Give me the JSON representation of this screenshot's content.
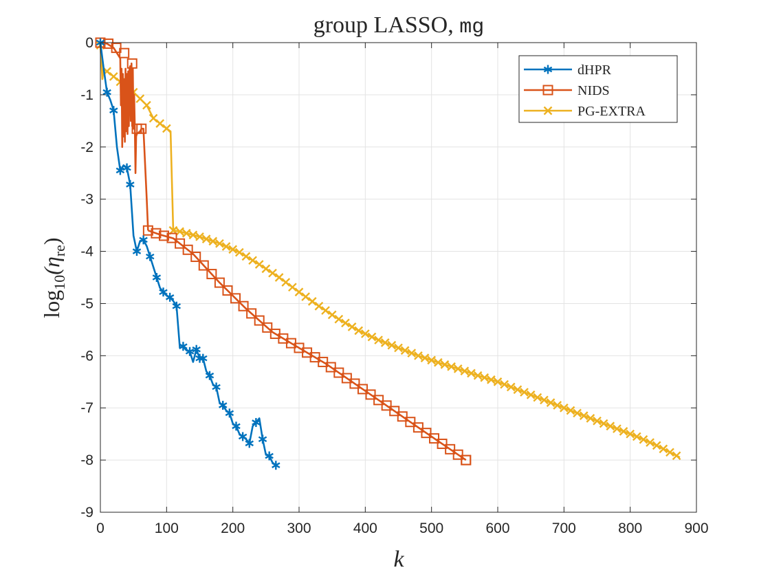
{
  "chart_data": {
    "type": "line",
    "title": "group LASSO, ",
    "title_code": "mg",
    "xlabel": "k",
    "ylabel_prefix": "log",
    "ylabel_sub1": "10",
    "ylabel_eta": "(η",
    "ylabel_sub2": "re",
    "ylabel_suffix": ")",
    "xlim": [
      0,
      900
    ],
    "ylim": [
      -9,
      0
    ],
    "xticks": [
      0,
      100,
      200,
      300,
      400,
      500,
      600,
      700,
      800,
      900
    ],
    "yticks": [
      0,
      -1,
      -2,
      -3,
      -4,
      -5,
      -6,
      -7,
      -8,
      -9
    ],
    "xtick_labels": [
      "0",
      "100",
      "200",
      "300",
      "400",
      "500",
      "600",
      "700",
      "800",
      "900"
    ],
    "ytick_labels": [
      "0",
      "-1",
      "-2",
      "-3",
      "-4",
      "-5",
      "-6",
      "-7",
      "-8",
      "-9"
    ],
    "grid": true,
    "legend_position": "top-right",
    "series": [
      {
        "name": "dHPR",
        "color": "#0072BD",
        "marker": "asterisk",
        "x": [
          0,
          5,
          10,
          15,
          20,
          25,
          30,
          35,
          40,
          45,
          50,
          55,
          60,
          65,
          70,
          75,
          80,
          85,
          90,
          95,
          100,
          105,
          110,
          115,
          120,
          125,
          130,
          135,
          140,
          145,
          150,
          155,
          160,
          165,
          170,
          175,
          180,
          185,
          190,
          195,
          200,
          205,
          210,
          215,
          220,
          225,
          230,
          235,
          240,
          245,
          250,
          255,
          260,
          265
        ],
        "y": [
          0,
          -0.5,
          -0.95,
          -1.1,
          -1.3,
          -2.0,
          -2.45,
          -2.35,
          -2.4,
          -2.72,
          -3.7,
          -4.0,
          -3.8,
          -3.78,
          -3.9,
          -4.1,
          -4.3,
          -4.5,
          -4.7,
          -4.78,
          -4.85,
          -4.88,
          -4.95,
          -5.05,
          -5.85,
          -5.82,
          -5.9,
          -5.92,
          -6.12,
          -5.88,
          -6.05,
          -6.05,
          -6.3,
          -6.38,
          -6.55,
          -6.6,
          -6.9,
          -6.95,
          -7.05,
          -7.1,
          -7.3,
          -7.35,
          -7.5,
          -7.55,
          -7.6,
          -7.68,
          -7.35,
          -7.28,
          -7.2,
          -7.6,
          -7.9,
          -7.92,
          -8.05,
          -8.1
        ],
        "marker_indices": [
          0,
          2,
          4,
          6,
          8,
          9,
          11,
          13,
          15,
          17,
          19,
          21,
          23,
          25,
          27,
          29,
          30,
          31,
          33,
          35,
          37,
          39,
          41,
          43,
          45,
          47,
          49,
          51,
          53
        ]
      },
      {
        "name": "NIDS",
        "color": "#D95319",
        "marker": "square",
        "x": [
          0,
          10,
          20,
          25,
          30,
          31,
          32,
          33,
          34,
          35,
          36,
          37,
          38,
          39,
          40,
          41,
          42,
          43,
          44,
          45,
          46,
          47,
          48,
          49,
          50,
          51,
          52,
          53,
          54,
          55,
          60,
          62,
          65,
          70,
          72
        ],
        "y": [
          0,
          -0.02,
          -0.1,
          -0.2,
          -0.3,
          -1.2,
          -0.5,
          -2.0,
          -0.6,
          -1.8,
          -0.7,
          -1.9,
          -0.5,
          -1.7,
          -0.6,
          -1.75,
          -0.55,
          -1.6,
          -0.5,
          -0.45,
          -1.5,
          -0.4,
          -1.6,
          -0.5,
          -1.65,
          -1.0,
          -1.6,
          -2.5,
          -1.8,
          -1.75,
          -1.7,
          -1.65,
          -1.65,
          -3.0,
          -3.6
        ],
        "tail_x_start": 72,
        "tail_x_end": 552,
        "tail_step": 12,
        "tail_y_start": -3.6,
        "tail_y_end": -8.0,
        "tail_curve": [
          [
            72,
            -3.6
          ],
          [
            90,
            -3.68
          ],
          [
            110,
            -3.75
          ],
          [
            140,
            -4.05
          ],
          [
            180,
            -4.6
          ],
          [
            220,
            -5.1
          ],
          [
            260,
            -5.55
          ],
          [
            300,
            -5.85
          ],
          [
            340,
            -6.15
          ],
          [
            380,
            -6.5
          ],
          [
            420,
            -6.85
          ],
          [
            460,
            -7.2
          ],
          [
            500,
            -7.55
          ],
          [
            552,
            -8.0
          ]
        ],
        "marker_points": [
          [
            0,
            0
          ],
          [
            12,
            -0.02
          ],
          [
            24,
            -0.1
          ],
          [
            36,
            -0.2
          ],
          [
            48,
            -0.4
          ],
          [
            55,
            -1.65
          ],
          [
            62,
            -1.65
          ],
          [
            72,
            -3.6
          ]
        ]
      },
      {
        "name": "PG-EXTRA",
        "color": "#EDB120",
        "marker": "x",
        "curve": [
          [
            0,
            -0.05
          ],
          [
            3,
            -0.7
          ],
          [
            5,
            -0.5
          ],
          [
            15,
            -0.6
          ],
          [
            30,
            -0.75
          ],
          [
            50,
            -0.95
          ],
          [
            70,
            -1.2
          ],
          [
            80,
            -1.45
          ],
          [
            95,
            -1.6
          ],
          [
            106,
            -1.7
          ],
          [
            110,
            -3.6
          ],
          [
            120,
            -3.62
          ],
          [
            150,
            -3.72
          ],
          [
            180,
            -3.85
          ],
          [
            210,
            -4.02
          ],
          [
            240,
            -4.25
          ],
          [
            270,
            -4.5
          ],
          [
            300,
            -4.78
          ],
          [
            330,
            -5.05
          ],
          [
            360,
            -5.3
          ],
          [
            390,
            -5.52
          ],
          [
            420,
            -5.7
          ],
          [
            450,
            -5.85
          ],
          [
            480,
            -6.0
          ],
          [
            510,
            -6.13
          ],
          [
            540,
            -6.25
          ],
          [
            570,
            -6.38
          ],
          [
            600,
            -6.5
          ],
          [
            630,
            -6.65
          ],
          [
            660,
            -6.8
          ],
          [
            690,
            -6.95
          ],
          [
            720,
            -7.1
          ],
          [
            750,
            -7.25
          ],
          [
            780,
            -7.4
          ],
          [
            810,
            -7.55
          ],
          [
            840,
            -7.72
          ],
          [
            875,
            -7.95
          ]
        ],
        "marker_step": 10
      }
    ]
  }
}
